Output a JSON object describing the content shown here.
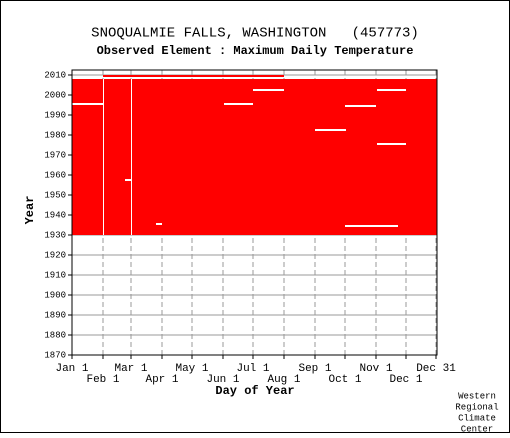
{
  "chart_data": {
    "type": "coverage",
    "title": "SNOQUALMIE FALLS, WASHINGTON   (457773)",
    "subtitle": "Observed Element : Maximum Daily Temperature",
    "x_label": "Day of Year",
    "y_label": "Year",
    "credit": [
      "Western",
      "Regional",
      "Climate",
      "Center"
    ],
    "color": "#ff0000",
    "xlim": [
      1,
      365
    ],
    "ylim": [
      1870,
      2010
    ],
    "xticks": [
      {
        "value": 1,
        "label": "Jan 1"
      },
      {
        "value": 32,
        "label": "Feb 1"
      },
      {
        "value": 60,
        "label": "Mar 1"
      },
      {
        "value": 91,
        "label": "Apr 1"
      },
      {
        "value": 121,
        "label": "May 1"
      },
      {
        "value": 152,
        "label": "Jun 1"
      },
      {
        "value": 182,
        "label": "Jul 1"
      },
      {
        "value": 213,
        "label": "Aug 1"
      },
      {
        "value": 244,
        "label": "Sep 1"
      },
      {
        "value": 274,
        "label": "Oct 1"
      },
      {
        "value": 305,
        "label": "Nov 1"
      },
      {
        "value": 335,
        "label": "Dec 1"
      },
      {
        "value": 365,
        "label": "Dec 31"
      }
    ],
    "yticks": [
      1870,
      1880,
      1890,
      1900,
      1910,
      1920,
      1930,
      1940,
      1950,
      1960,
      1970,
      1980,
      1990,
      2000,
      2010
    ],
    "blocks": [
      [
        1,
        365,
        1930,
        2007
      ],
      [
        32,
        212,
        2009,
        2009
      ]
    ],
    "gaps": [
      [
        32,
        32,
        1930,
        2007
      ],
      [
        60,
        60,
        1930,
        2007
      ],
      [
        1,
        31,
        1995,
        1995
      ],
      [
        54,
        59,
        1957,
        1957
      ],
      [
        85,
        90,
        1935,
        1935
      ],
      [
        153,
        181,
        1995,
        1995
      ],
      [
        182,
        212,
        2002,
        2002
      ],
      [
        244,
        274,
        1982,
        1982
      ],
      [
        274,
        304,
        1994,
        1994
      ],
      [
        306,
        334,
        2002,
        2002
      ],
      [
        306,
        334,
        1975,
        1975
      ],
      [
        274,
        326,
        1934,
        1934
      ]
    ]
  }
}
